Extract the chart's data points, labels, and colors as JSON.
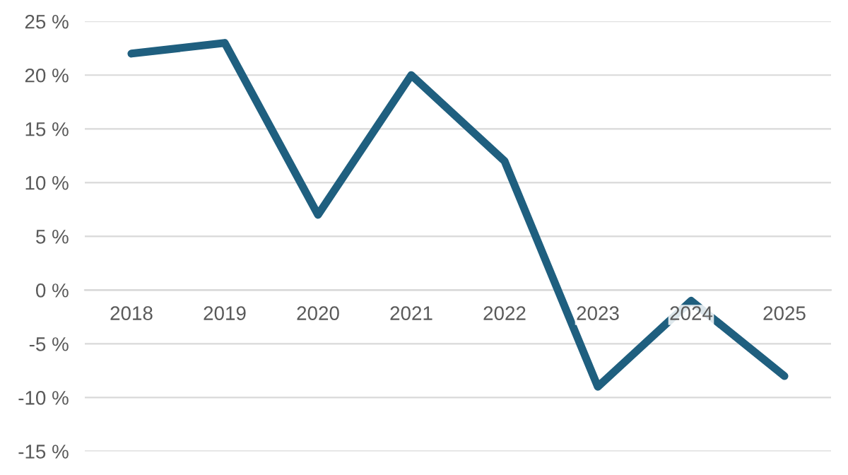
{
  "chart_data": {
    "type": "line",
    "categories": [
      "2018",
      "2019",
      "2020",
      "2021",
      "2022",
      "2023",
      "2024",
      "2025"
    ],
    "series": [
      {
        "color": "#1f5f7f",
        "values": [
          22,
          23,
          7,
          20,
          12,
          -9,
          -1,
          -8
        ]
      }
    ],
    "ylim": [
      -15,
      25
    ],
    "yticks": [
      {
        "value": -15,
        "label": "-15 %"
      },
      {
        "value": -10,
        "label": "-10 %"
      },
      {
        "value": -5,
        "label": "-5 %"
      },
      {
        "value": 0,
        "label": "0 %"
      },
      {
        "value": 5,
        "label": "5 %"
      },
      {
        "value": 10,
        "label": "10 %"
      },
      {
        "value": 15,
        "label": "15 %"
      },
      {
        "value": 20,
        "label": "20 %"
      },
      {
        "value": 25,
        "label": "25 %"
      }
    ],
    "grid": "y",
    "marker": "none",
    "line_style": "solid"
  }
}
